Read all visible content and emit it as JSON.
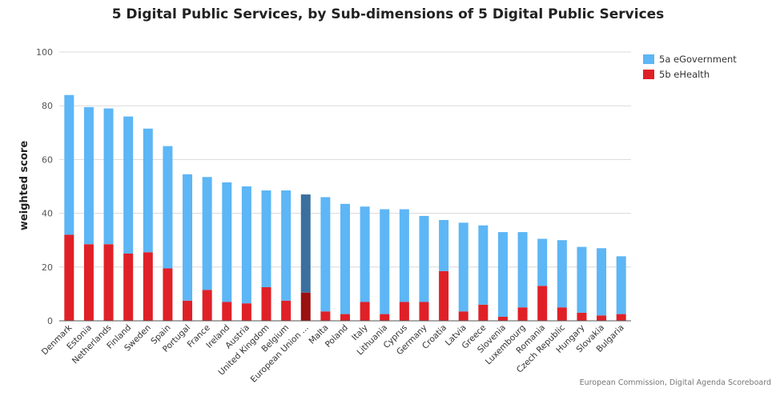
{
  "chart_data": {
    "type": "bar",
    "stacked": true,
    "title": "5 Digital Public Services, by Sub-dimensions of 5 Digital Public Services",
    "ylabel": "weighted score",
    "xlabel": "",
    "ylim": [
      0,
      100
    ],
    "yticks": [
      0,
      20,
      40,
      60,
      80,
      100
    ],
    "grid": true,
    "legend_position": "top-right",
    "categories": [
      "Denmark",
      "Estonia",
      "Netherlands",
      "Finland",
      "Sweden",
      "Spain",
      "Portugal",
      "France",
      "Ireland",
      "Austria",
      "United Kingdom",
      "Belgium",
      "European Union ...",
      "Malta",
      "Poland",
      "Italy",
      "Lithuania",
      "Cyprus",
      "Germany",
      "Croatia",
      "Latvia",
      "Greece",
      "Slovenia",
      "Luxembourg",
      "Romania",
      "Czech Republic",
      "Hungary",
      "Slovakia",
      "Bulgaria"
    ],
    "series": [
      {
        "name": "5b eHealth",
        "color": "#e02027",
        "values": [
          32,
          28.5,
          28.5,
          25,
          25.5,
          19.5,
          7.5,
          11.5,
          7,
          6.5,
          12.5,
          7.5,
          10.5,
          3.5,
          2.5,
          7,
          2.5,
          7,
          7,
          18.5,
          3.5,
          6,
          1.5,
          5,
          13,
          5,
          3,
          2,
          2.5
        ]
      },
      {
        "name": "5a eGovernment",
        "color": "#5db6f5",
        "values": [
          52,
          51,
          50.5,
          51,
          46,
          45.5,
          47,
          42,
          44.5,
          43.5,
          36,
          41,
          36.5,
          42.5,
          41,
          35.5,
          39,
          34.5,
          32,
          19,
          33,
          29.5,
          31.5,
          28,
          17.5,
          25,
          24.5,
          25,
          21.5
        ]
      }
    ],
    "highlight_category": "European Union ...",
    "highlight_colors": {
      "5a eGovernment": "#3b6f9e",
      "5b eHealth": "#9b1010"
    }
  },
  "legend": {
    "items": [
      {
        "label": "5a eGovernment",
        "color": "#5db6f5"
      },
      {
        "label": "5b eHealth",
        "color": "#e02027"
      }
    ]
  },
  "credit": "European Commission, Digital Agenda Scoreboard"
}
